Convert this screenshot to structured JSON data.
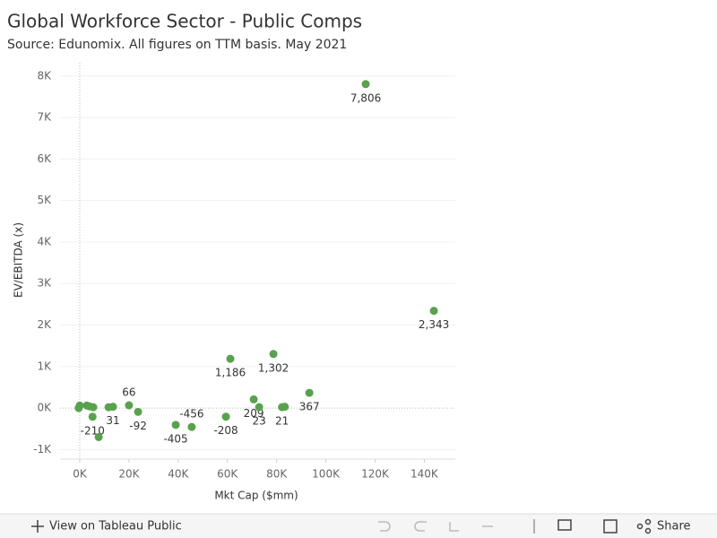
{
  "chart_data": {
    "type": "scatter",
    "title": "Global Workforce Sector - Public Comps",
    "subtitle": "Source: Edunomix.  All figures on TTM basis.  May 2021",
    "x_label": "Mkt Cap ($mm)",
    "y_label": "EV/EBITDA (x)",
    "color": "#59a14f",
    "grid": true,
    "xlim": [
      -8000,
      152600
    ],
    "ylim": [
      -1230,
      8320
    ],
    "xticks": [
      {
        "value": 0,
        "label": "0K"
      },
      {
        "value": 20000,
        "label": "20K"
      },
      {
        "value": 40000,
        "label": "40K"
      },
      {
        "value": 60000,
        "label": "60K"
      },
      {
        "value": 80000,
        "label": "80K"
      },
      {
        "value": 100000,
        "label": "100K"
      },
      {
        "value": 120000,
        "label": "120K"
      },
      {
        "value": 140000,
        "label": "140K"
      }
    ],
    "yticks": [
      {
        "value": -1000,
        "label": "-1K"
      },
      {
        "value": 0,
        "label": "0K"
      },
      {
        "value": 1000,
        "label": "1K"
      },
      {
        "value": 2000,
        "label": "2K"
      },
      {
        "value": 3000,
        "label": "3K"
      },
      {
        "value": 4000,
        "label": "4K"
      },
      {
        "value": 5000,
        "label": "5K"
      },
      {
        "value": 6000,
        "label": "6K"
      },
      {
        "value": 7000,
        "label": "7K"
      },
      {
        "value": 8000,
        "label": "8K"
      }
    ],
    "x": [
      116200,
      143900,
      61200,
      78700,
      93300,
      70700,
      72900,
      82200,
      83300,
      59400,
      45500,
      39000,
      23700,
      20000,
      13500,
      11700,
      5200,
      7700,
      -400,
      0,
      2900,
      4000,
      5500
    ],
    "values": [
      7806,
      2343,
      1186,
      1302,
      367,
      209,
      23,
      21,
      30,
      -208,
      -456,
      -405,
      -92,
      66,
      31,
      20,
      -210,
      -700,
      0,
      60,
      60,
      40,
      20
    ],
    "value_labels": [
      "7,806",
      "2,343",
      "1,186",
      "1,302",
      "367",
      "209",
      "23",
      "21",
      null,
      "-208",
      "-456",
      "-405",
      "-92",
      "66",
      "31",
      null,
      "-210",
      null,
      null,
      null,
      null,
      null,
      null
    ]
  },
  "footer": {
    "view_link": "View on Tableau Public",
    "share": "Share"
  }
}
